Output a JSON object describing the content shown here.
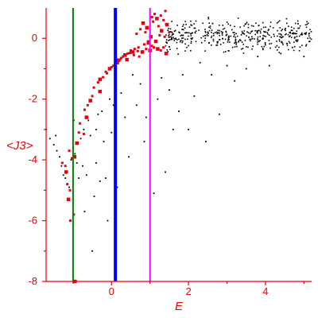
{
  "chart_data": {
    "type": "scatter",
    "title": "",
    "xlabel": "E",
    "ylabel": "<J3>",
    "xlim": [
      -1.7,
      5.2
    ],
    "ylim": [
      -8,
      1.0
    ],
    "xticks": [
      0,
      2,
      4
    ],
    "yticks": [
      -8,
      -6,
      -4,
      -2,
      0
    ],
    "grid": false,
    "colors": {
      "axes": "#e8000b",
      "text": "#e8000b"
    },
    "vlines": [
      {
        "x": -1.0,
        "color": "#008000"
      },
      {
        "x": 0.1,
        "color": "#0000ff"
      },
      {
        "x": 1.0,
        "color": "#ff00ff"
      }
    ],
    "series": [
      {
        "color": "#e8000b",
        "points": [
          [
            -0.95,
            -8.0
          ],
          [
            -1.07,
            -6.0
          ],
          [
            -0.98,
            -5.8
          ],
          [
            -1.12,
            -5.3
          ],
          [
            -1.08,
            -5.0
          ],
          [
            -1.15,
            -4.8
          ],
          [
            -1.18,
            -4.4
          ],
          [
            -1.2,
            -4.2
          ],
          [
            -1.28,
            -4.1
          ],
          [
            -0.96,
            -3.9
          ],
          [
            -1.03,
            -3.95
          ],
          [
            -1.1,
            -3.7
          ],
          [
            -0.9,
            -3.45
          ],
          [
            -0.85,
            -3.1
          ],
          [
            -0.72,
            -3.15
          ],
          [
            -0.65,
            -2.6
          ],
          [
            -0.82,
            -2.8
          ],
          [
            -0.7,
            -2.35
          ],
          [
            -0.55,
            -2.05
          ],
          [
            -0.62,
            -2.2
          ],
          [
            -0.5,
            -1.9
          ],
          [
            -0.3,
            -1.75
          ],
          [
            -0.46,
            -1.62
          ],
          [
            -0.35,
            -1.45
          ],
          [
            -0.3,
            -1.35
          ],
          [
            -0.22,
            -1.28
          ],
          [
            -0.12,
            -1.15
          ],
          [
            -0.05,
            -1.0
          ],
          [
            0.0,
            -0.95
          ],
          [
            0.1,
            -0.85
          ],
          [
            0.15,
            -0.8
          ],
          [
            0.22,
            -0.7
          ],
          [
            0.3,
            -0.6
          ],
          [
            0.35,
            -0.55
          ],
          [
            0.42,
            -0.5
          ],
          [
            0.5,
            -0.4
          ],
          [
            0.55,
            -0.45
          ],
          [
            0.6,
            -0.35
          ],
          [
            0.7,
            -0.3
          ],
          [
            0.8,
            -0.45
          ],
          [
            0.85,
            -0.2
          ],
          [
            0.9,
            -0.35
          ],
          [
            1.0,
            -0.4
          ],
          [
            1.05,
            -0.25
          ],
          [
            1.1,
            -0.3
          ],
          [
            1.2,
            -0.35
          ],
          [
            1.28,
            -0.4
          ],
          [
            1.35,
            -0.3
          ],
          [
            1.42,
            -0.5
          ],
          [
            0.65,
            0.15
          ],
          [
            0.75,
            0.3
          ],
          [
            0.82,
            0.5
          ],
          [
            0.88,
            0.2
          ],
          [
            0.95,
            -0.1
          ],
          [
            1.02,
            0.05
          ],
          [
            1.08,
            0.55
          ],
          [
            1.12,
            0.8
          ],
          [
            1.18,
            0.65
          ],
          [
            1.22,
            0.4
          ],
          [
            1.28,
            0.75
          ],
          [
            1.3,
            0.25
          ],
          [
            1.35,
            0.6
          ],
          [
            1.4,
            0.9
          ],
          [
            1.44,
            0.45
          ],
          [
            1.5,
            0.2
          ],
          [
            0.25,
            -0.65
          ],
          [
            0.4,
            -0.7
          ],
          [
            0.58,
            -0.55
          ],
          [
            0.72,
            -0.6
          ],
          [
            0.96,
            -0.15
          ],
          [
            -0.15,
            -1.1
          ],
          [
            0.05,
            -0.9
          ],
          [
            0.18,
            -0.72
          ],
          [
            0.48,
            -0.48
          ],
          [
            0.68,
            -0.42
          ],
          [
            1.15,
            -0.1
          ],
          [
            1.25,
            0.1
          ],
          [
            1.38,
            0.05
          ],
          [
            0.92,
            0.35
          ],
          [
            1.05,
            0.7
          ]
        ]
      },
      {
        "color": "#000000",
        "points": [
          [
            -1.7,
            -3.0
          ],
          [
            -1.6,
            -3.3
          ],
          [
            -1.5,
            -3.5
          ],
          [
            -1.42,
            -3.7
          ],
          [
            -1.35,
            -3.9
          ],
          [
            -1.3,
            -4.2
          ],
          [
            -1.25,
            -4.5
          ],
          [
            -1.2,
            -4.6
          ],
          [
            -1.15,
            -4.4
          ],
          [
            -1.1,
            -4.9
          ],
          [
            -1.05,
            -4.0
          ],
          [
            -1.0,
            -3.6
          ],
          [
            -0.95,
            -3.8
          ],
          [
            -0.9,
            -4.1
          ],
          [
            -0.85,
            -4.6
          ],
          [
            -0.8,
            -3.3
          ],
          [
            -0.75,
            -4.2
          ],
          [
            -0.7,
            -5.7
          ],
          [
            -0.65,
            -4.5
          ],
          [
            -0.6,
            -2.7
          ],
          [
            -0.55,
            -3.2
          ],
          [
            -0.5,
            -7.0
          ],
          [
            -0.45,
            -5.2
          ],
          [
            -0.4,
            -3.0
          ],
          [
            -0.35,
            -2.5
          ],
          [
            -0.3,
            -4.7
          ],
          [
            -0.25,
            -2.4
          ],
          [
            -0.2,
            -3.4
          ],
          [
            -0.15,
            -4.6
          ],
          [
            -0.1,
            -6.0
          ],
          [
            -0.05,
            -2.0
          ],
          [
            0.0,
            -3.1
          ],
          [
            0.05,
            -2.2
          ],
          [
            0.15,
            -4.9
          ],
          [
            0.25,
            -1.8
          ],
          [
            0.35,
            -2.6
          ],
          [
            0.45,
            -3.9
          ],
          [
            0.55,
            -1.2
          ],
          [
            0.65,
            -2.2
          ],
          [
            0.75,
            -1.5
          ],
          [
            0.85,
            -3.4
          ],
          [
            1.0,
            -0.9
          ],
          [
            1.1,
            -5.1
          ],
          [
            1.2,
            -2.0
          ],
          [
            1.3,
            -1.3
          ],
          [
            1.4,
            -4.4
          ],
          [
            1.5,
            -1.7
          ],
          [
            1.6,
            -3.0
          ],
          [
            1.75,
            -2.4
          ],
          [
            1.85,
            -1.2
          ],
          [
            2.0,
            -3.0
          ],
          [
            2.15,
            -1.9
          ],
          [
            2.3,
            -0.8
          ],
          [
            2.45,
            -3.4
          ],
          [
            2.6,
            -1.2
          ],
          [
            2.8,
            -2.5
          ],
          [
            3.0,
            -0.9
          ],
          [
            3.2,
            -1.4
          ],
          [
            3.5,
            -1.0
          ],
          [
            3.8,
            -0.6
          ],
          [
            4.1,
            -0.9
          ],
          [
            4.4,
            -0.5
          ],
          [
            4.7,
            -0.3
          ],
          [
            5.0,
            -0.6
          ],
          [
            5.15,
            -0.1
          ],
          [
            -1.45,
            -3.2
          ],
          [
            -0.98,
            -2.7
          ],
          [
            -0.72,
            -3.0
          ],
          [
            -0.4,
            -4.1
          ],
          [
            0.9,
            -2.6
          ]
        ]
      }
    ],
    "cloud": {
      "color": "#000000",
      "x_range": [
        1.4,
        5.2
      ],
      "y_center": 0.1,
      "y_spread": 0.35,
      "count": 420
    }
  }
}
